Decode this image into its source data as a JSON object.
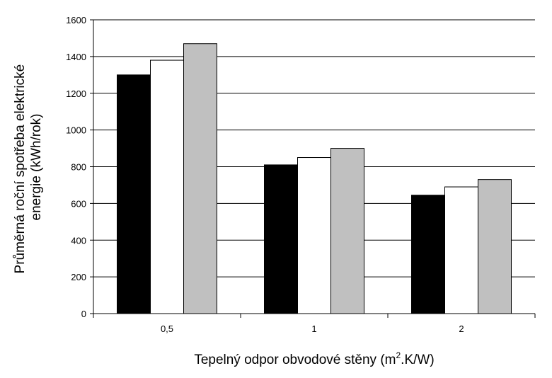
{
  "chart_data": {
    "type": "bar",
    "categories": [
      "0,5",
      "1",
      "2"
    ],
    "series": [
      {
        "values": [
          1300,
          810,
          645
        ],
        "color": "#000000"
      },
      {
        "values": [
          1380,
          850,
          690
        ],
        "color": "#ffffff"
      },
      {
        "values": [
          1470,
          900,
          730
        ],
        "color": "#c0c0c0"
      }
    ],
    "ylim": [
      0,
      1600
    ],
    "yticks": [
      0,
      200,
      400,
      600,
      800,
      1000,
      1200,
      1400,
      1600
    ],
    "ylabel_line1": "Průměrná roční spotřeba elektrické",
    "ylabel_line2": "energie (kWh/rok)",
    "xlabel_main": "Tepelný odpor obvodové stěny (m",
    "xlabel_sup": "2",
    "xlabel_tail": ".K/W)",
    "grid": true,
    "legend": "none"
  }
}
